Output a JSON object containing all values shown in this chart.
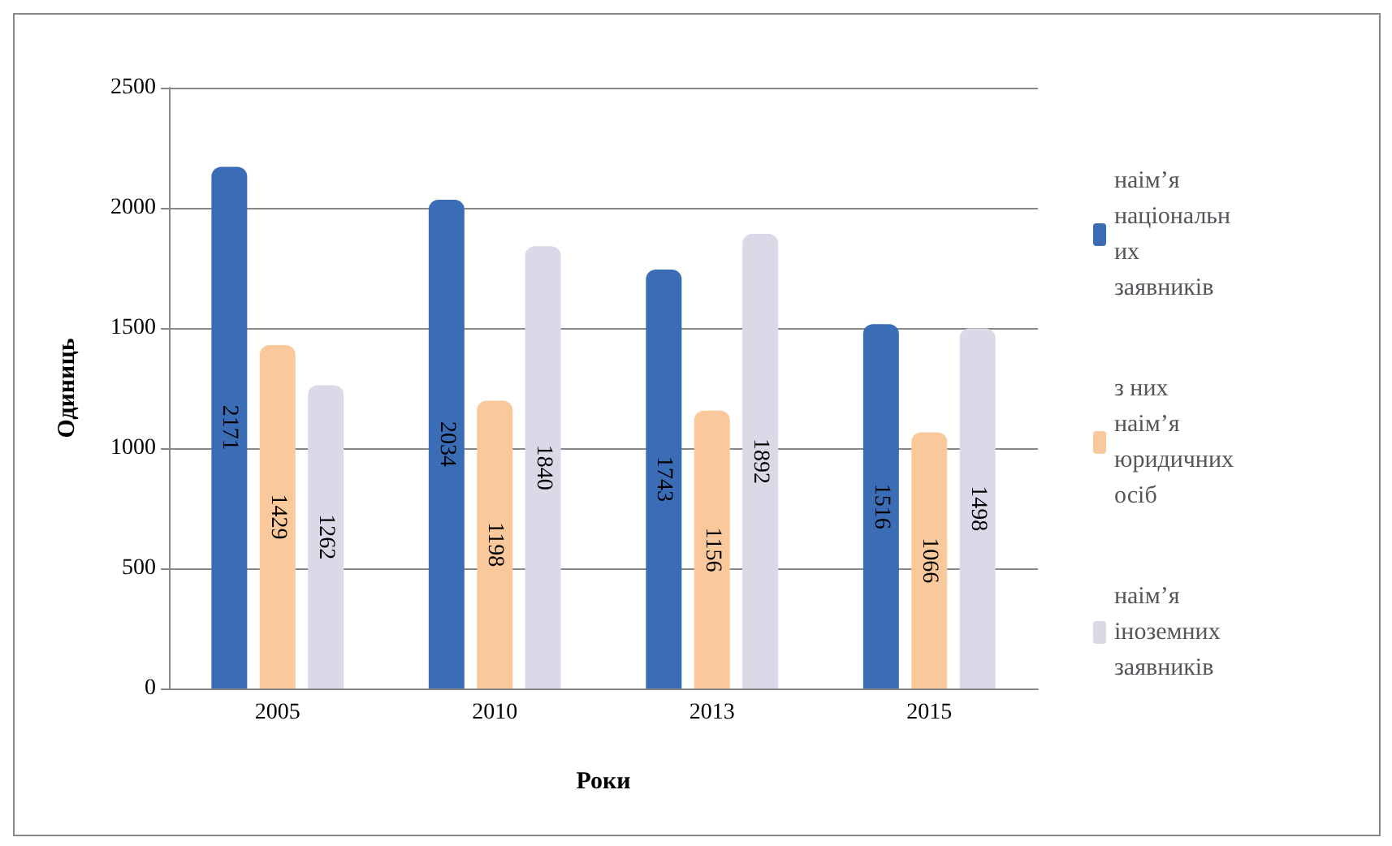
{
  "chart_data": {
    "type": "bar",
    "xlabel": "Роки",
    "ylabel": "Одиниць",
    "categories": [
      "2005",
      "2010",
      "2013",
      "2015"
    ],
    "series": [
      {
        "name": "наім’я національних заявників",
        "color": "#3a6db5",
        "values": [
          2171,
          2034,
          1743,
          1516
        ]
      },
      {
        "name": "з них наім’я юридичних осіб",
        "color": "#f9c89b",
        "values": [
          1429,
          1198,
          1156,
          1066
        ]
      },
      {
        "name": "наім’я іноземних заявників",
        "color": "#dcd8e8",
        "values": [
          1262,
          1840,
          1892,
          1498
        ]
      }
    ],
    "ylim": [
      0,
      2500
    ],
    "yticks": [
      0,
      500,
      1000,
      1500,
      2000,
      2500
    ],
    "grid": "y",
    "legend": "right",
    "data_labels": true
  }
}
